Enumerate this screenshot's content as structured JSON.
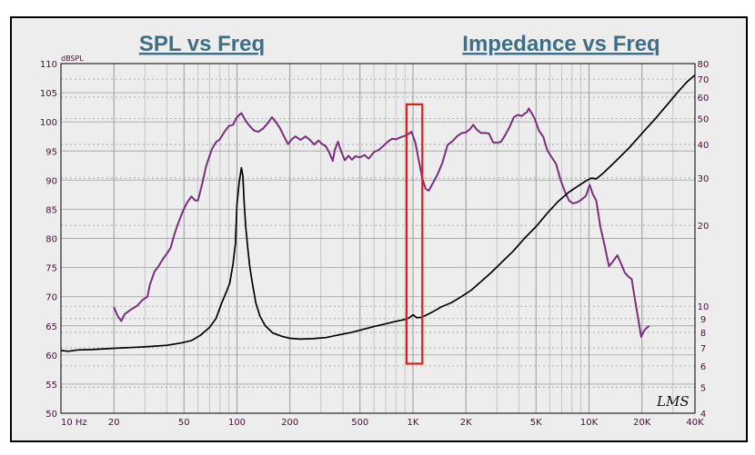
{
  "chart_data": {
    "type": "line",
    "titles": {
      "left": "SPL vs Freq",
      "right": "Impedance vs Freq"
    },
    "left_axis": {
      "unit_label": "dBSPL",
      "range": [
        50,
        110
      ],
      "ticks": [
        50,
        55,
        60,
        65,
        70,
        75,
        80,
        85,
        90,
        95,
        100,
        105,
        110
      ]
    },
    "right_axis": {
      "unit_label": "Ohm",
      "scale": "log",
      "range": [
        4,
        80
      ],
      "ticks": [
        4,
        5,
        6,
        7,
        8,
        9,
        10,
        20,
        30,
        40,
        50,
        60,
        70,
        80
      ]
    },
    "x_axis": {
      "scale": "log",
      "range": [
        10,
        40000
      ],
      "tick_values": [
        10,
        20,
        50,
        100,
        200,
        500,
        1000,
        2000,
        5000,
        10000,
        20000,
        40000
      ],
      "tick_labels": [
        "10 Hz",
        "20",
        "50",
        "100",
        "200",
        "500",
        "1K",
        "2K",
        "5K",
        "10K",
        "20K",
        "40K"
      ]
    },
    "grid": true,
    "series": [
      {
        "axis": "left",
        "color": "#7a2f7e",
        "points": [
          [
            20,
            68.2
          ],
          [
            21,
            66.7
          ],
          [
            22,
            65.8
          ],
          [
            23,
            67.0
          ],
          [
            25,
            67.8
          ],
          [
            27,
            68.4
          ],
          [
            29,
            69.4
          ],
          [
            31,
            70.0
          ],
          [
            32,
            72.0
          ],
          [
            34,
            74.3
          ],
          [
            36,
            75.3
          ],
          [
            38,
            76.5
          ],
          [
            40,
            77.4
          ],
          [
            42,
            78.4
          ],
          [
            44,
            80.6
          ],
          [
            46,
            82.3
          ],
          [
            49,
            84.5
          ],
          [
            52,
            86.1
          ],
          [
            55,
            87.2
          ],
          [
            58,
            86.5
          ],
          [
            60,
            86.5
          ],
          [
            63,
            89.0
          ],
          [
            67,
            92.5
          ],
          [
            72,
            95.3
          ],
          [
            76,
            96.5
          ],
          [
            80,
            97.0
          ],
          [
            85,
            98.3
          ],
          [
            90,
            99.3
          ],
          [
            95,
            99.5
          ],
          [
            100,
            100.8
          ],
          [
            106,
            101.5
          ],
          [
            112,
            100.2
          ],
          [
            118,
            99.3
          ],
          [
            125,
            98.5
          ],
          [
            132,
            98.3
          ],
          [
            140,
            98.8
          ],
          [
            150,
            99.8
          ],
          [
            158,
            100.8
          ],
          [
            165,
            100.1
          ],
          [
            175,
            99.0
          ],
          [
            185,
            97.5
          ],
          [
            195,
            96.2
          ],
          [
            205,
            97.0
          ],
          [
            215,
            97.5
          ],
          [
            230,
            96.9
          ],
          [
            245,
            97.5
          ],
          [
            260,
            96.9
          ],
          [
            275,
            96.1
          ],
          [
            290,
            96.8
          ],
          [
            305,
            96.2
          ],
          [
            320,
            95.8
          ],
          [
            335,
            94.7
          ],
          [
            350,
            93.3
          ],
          [
            360,
            95.2
          ],
          [
            375,
            96.6
          ],
          [
            390,
            95.0
          ],
          [
            410,
            93.4
          ],
          [
            430,
            94.2
          ],
          [
            450,
            93.5
          ],
          [
            470,
            94.1
          ],
          [
            500,
            93.9
          ],
          [
            530,
            94.3
          ],
          [
            560,
            93.7
          ],
          [
            600,
            94.8
          ],
          [
            640,
            95.2
          ],
          [
            680,
            95.9
          ],
          [
            720,
            96.6
          ],
          [
            760,
            97.1
          ],
          [
            800,
            97.0
          ],
          [
            860,
            97.4
          ],
          [
            920,
            97.7
          ],
          [
            980,
            98.3
          ],
          [
            1030,
            96.5
          ],
          [
            1080,
            93.3
          ],
          [
            1130,
            90.3
          ],
          [
            1180,
            88.5
          ],
          [
            1230,
            88.2
          ],
          [
            1300,
            89.5
          ],
          [
            1380,
            91.0
          ],
          [
            1470,
            93.0
          ],
          [
            1570,
            96.0
          ],
          [
            1680,
            96.7
          ],
          [
            1790,
            97.6
          ],
          [
            1900,
            98.1
          ],
          [
            2000,
            98.2
          ],
          [
            2100,
            98.7
          ],
          [
            2200,
            99.5
          ],
          [
            2300,
            98.7
          ],
          [
            2430,
            98.1
          ],
          [
            2560,
            98.1
          ],
          [
            2700,
            98.0
          ],
          [
            2850,
            96.5
          ],
          [
            3000,
            96.4
          ],
          [
            3170,
            96.6
          ],
          [
            3350,
            97.8
          ],
          [
            3540,
            99.1
          ],
          [
            3740,
            100.8
          ],
          [
            3950,
            101.2
          ],
          [
            4150,
            101.0
          ],
          [
            4300,
            101.4
          ],
          [
            4450,
            101.7
          ],
          [
            4550,
            102.3
          ],
          [
            4700,
            101.6
          ],
          [
            4900,
            100.6
          ],
          [
            5200,
            98.5
          ],
          [
            5500,
            97.4
          ],
          [
            5800,
            95.1
          ],
          [
            6150,
            93.9
          ],
          [
            6500,
            92.8
          ],
          [
            6900,
            90.0
          ],
          [
            7300,
            88.0
          ],
          [
            7700,
            86.5
          ],
          [
            8100,
            86.0
          ],
          [
            8600,
            86.2
          ],
          [
            9100,
            86.7
          ],
          [
            9600,
            87.3
          ],
          [
            10100,
            89.2
          ],
          [
            10500,
            87.6
          ],
          [
            11000,
            86.5
          ],
          [
            11600,
            82.0
          ],
          [
            12300,
            78.6
          ],
          [
            13000,
            75.2
          ],
          [
            13700,
            76.1
          ],
          [
            14500,
            77.1
          ],
          [
            15200,
            75.7
          ],
          [
            16000,
            74.1
          ],
          [
            16800,
            73.4
          ],
          [
            17500,
            73.0
          ],
          [
            18200,
            69.7
          ],
          [
            19000,
            66.4
          ],
          [
            19800,
            63.1
          ],
          [
            20500,
            64.1
          ],
          [
            21200,
            64.6
          ],
          [
            22000,
            65.0
          ]
        ]
      },
      {
        "axis": "right",
        "color": "#000000",
        "points": [
          [
            10,
            6.85
          ],
          [
            11,
            6.8
          ],
          [
            12.5,
            6.88
          ],
          [
            15,
            6.9
          ],
          [
            18,
            6.95
          ],
          [
            22,
            7.0
          ],
          [
            27,
            7.04
          ],
          [
            33,
            7.09
          ],
          [
            40,
            7.16
          ],
          [
            48,
            7.3
          ],
          [
            55,
            7.45
          ],
          [
            62,
            7.8
          ],
          [
            70,
            8.35
          ],
          [
            76,
            9.0
          ],
          [
            82,
            10.3
          ],
          [
            87,
            11.3
          ],
          [
            91,
            12.2
          ],
          [
            95,
            14.4
          ],
          [
            98,
            17.1
          ],
          [
            100,
            24.0
          ],
          [
            103,
            29.0
          ],
          [
            106,
            32.8
          ],
          [
            108,
            30.5
          ],
          [
            110,
            24.0
          ],
          [
            112,
            20.0
          ],
          [
            115,
            16.7
          ],
          [
            118,
            14.2
          ],
          [
            122,
            12.3
          ],
          [
            128,
            10.3
          ],
          [
            135,
            9.2
          ],
          [
            145,
            8.45
          ],
          [
            160,
            7.95
          ],
          [
            180,
            7.73
          ],
          [
            200,
            7.6
          ],
          [
            230,
            7.55
          ],
          [
            270,
            7.58
          ],
          [
            320,
            7.65
          ],
          [
            380,
            7.83
          ],
          [
            450,
            8.0
          ],
          [
            520,
            8.2
          ],
          [
            600,
            8.4
          ],
          [
            700,
            8.6
          ],
          [
            800,
            8.79
          ],
          [
            900,
            8.93
          ],
          [
            950,
            9.04
          ],
          [
            1000,
            9.3
          ],
          [
            1050,
            9.07
          ],
          [
            1120,
            9.1
          ],
          [
            1200,
            9.3
          ],
          [
            1300,
            9.55
          ],
          [
            1450,
            9.95
          ],
          [
            1650,
            10.3
          ],
          [
            1900,
            10.9
          ],
          [
            2150,
            11.5
          ],
          [
            2450,
            12.4
          ],
          [
            2800,
            13.4
          ],
          [
            3200,
            14.6
          ],
          [
            3700,
            16.0
          ],
          [
            4300,
            17.9
          ],
          [
            5000,
            19.8
          ],
          [
            5800,
            22.2
          ],
          [
            6700,
            24.6
          ],
          [
            7700,
            26.6
          ],
          [
            8800,
            28.2
          ],
          [
            9800,
            29.5
          ],
          [
            10300,
            30.0
          ],
          [
            11000,
            29.8
          ],
          [
            12000,
            31.2
          ],
          [
            14000,
            34.4
          ],
          [
            17000,
            39.0
          ],
          [
            20000,
            44.0
          ],
          [
            24000,
            50.2
          ],
          [
            28000,
            56.5
          ],
          [
            32000,
            62.7
          ],
          [
            36000,
            68.3
          ],
          [
            40000,
            72.5
          ]
        ]
      }
    ],
    "annotations": [
      {
        "type": "rectangle",
        "color": "#e11d16",
        "x_range": [
          920,
          1130
        ],
        "y_range": [
          58.5,
          103
        ]
      }
    ]
  },
  "watermark": "LMS"
}
